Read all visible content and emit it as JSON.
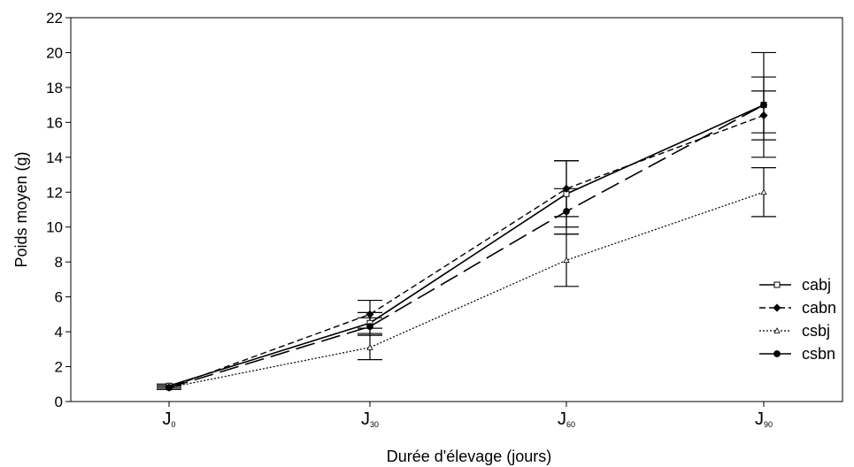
{
  "chart_data": {
    "type": "line",
    "title": "",
    "xlabel": "Durée d'élevage (jours)",
    "ylabel": "Poids moyen (g)",
    "ylim": [
      0,
      22
    ],
    "yticks": [
      0,
      2,
      4,
      6,
      8,
      10,
      12,
      14,
      16,
      18,
      20,
      22
    ],
    "grid": false,
    "legend_position": "right",
    "categories": [
      {
        "main": "J",
        "sub": "0"
      },
      {
        "main": "J",
        "sub": "30"
      },
      {
        "main": "J",
        "sub": "60"
      },
      {
        "main": "J",
        "sub": "90"
      }
    ],
    "series": [
      {
        "name": "cabj",
        "marker": "open-square",
        "line": "solid",
        "values": [
          0.9,
          4.5,
          11.9,
          17.0
        ],
        "error": [
          0.1,
          0.6,
          1.9,
          1.6
        ]
      },
      {
        "name": "cabn",
        "marker": "filled-diamond",
        "line": "dashed",
        "values": [
          0.8,
          5.0,
          12.2,
          16.4
        ],
        "error": [
          0.1,
          0.8,
          1.6,
          1.4
        ]
      },
      {
        "name": "csbj",
        "marker": "open-triangle",
        "line": "dotted",
        "values": [
          0.8,
          3.1,
          8.1,
          12.0
        ],
        "error": [
          0.1,
          0.7,
          1.5,
          1.4
        ]
      },
      {
        "name": "csbn",
        "marker": "filled-circle",
        "line": "long-dash",
        "values": [
          0.8,
          4.3,
          10.9,
          17.0
        ],
        "error": [
          0.1,
          0.5,
          1.3,
          3.0
        ]
      }
    ]
  }
}
